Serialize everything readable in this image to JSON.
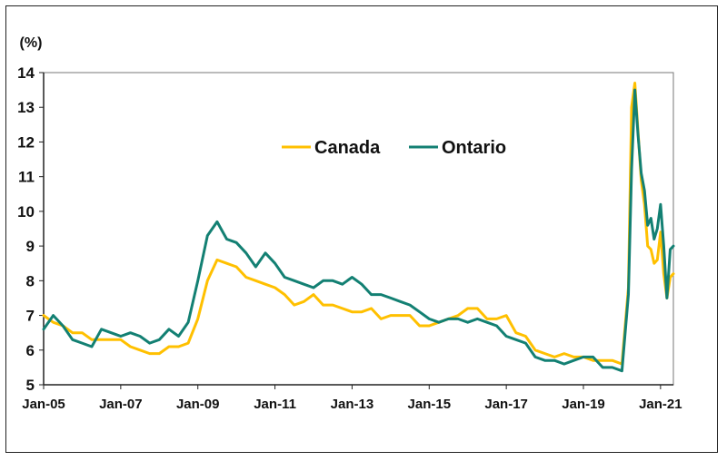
{
  "chart_data": {
    "type": "line",
    "ylabel": "(%)",
    "xlabel": "",
    "title": "",
    "ylim": [
      5,
      14
    ],
    "yticks": [
      5,
      6,
      7,
      8,
      9,
      10,
      11,
      12,
      13,
      14
    ],
    "xlim": [
      "2005-01",
      "2021-05"
    ],
    "xticks": [
      "Jan-05",
      "Jan-07",
      "Jan-09",
      "Jan-11",
      "Jan-13",
      "Jan-15",
      "Jan-17",
      "Jan-19",
      "Jan-21"
    ],
    "grid": false,
    "legend_position": "top-center",
    "series": [
      {
        "name": "Canada",
        "color": "#FFC000",
        "x": [
          "2005-01",
          "2005-04",
          "2005-07",
          "2005-10",
          "2006-01",
          "2006-04",
          "2006-07",
          "2006-10",
          "2007-01",
          "2007-04",
          "2007-07",
          "2007-10",
          "2008-01",
          "2008-04",
          "2008-07",
          "2008-10",
          "2009-01",
          "2009-04",
          "2009-07",
          "2009-10",
          "2010-01",
          "2010-04",
          "2010-07",
          "2010-10",
          "2011-01",
          "2011-04",
          "2011-07",
          "2011-10",
          "2012-01",
          "2012-04",
          "2012-07",
          "2012-10",
          "2013-01",
          "2013-04",
          "2013-07",
          "2013-10",
          "2014-01",
          "2014-04",
          "2014-07",
          "2014-10",
          "2015-01",
          "2015-04",
          "2015-07",
          "2015-10",
          "2016-01",
          "2016-04",
          "2016-07",
          "2016-10",
          "2017-01",
          "2017-04",
          "2017-07",
          "2017-10",
          "2018-01",
          "2018-04",
          "2018-07",
          "2018-10",
          "2019-01",
          "2019-04",
          "2019-07",
          "2019-10",
          "2020-01",
          "2020-03",
          "2020-04",
          "2020-05",
          "2020-06",
          "2020-07",
          "2020-08",
          "2020-09",
          "2020-10",
          "2020-11",
          "2020-12",
          "2021-01",
          "2021-02",
          "2021-03",
          "2021-04",
          "2021-05"
        ],
        "values": [
          7.0,
          6.8,
          6.7,
          6.5,
          6.5,
          6.3,
          6.3,
          6.3,
          6.3,
          6.1,
          6.0,
          5.9,
          5.9,
          6.1,
          6.1,
          6.2,
          6.9,
          8.0,
          8.6,
          8.5,
          8.4,
          8.1,
          8.0,
          7.9,
          7.8,
          7.6,
          7.3,
          7.4,
          7.6,
          7.3,
          7.3,
          7.2,
          7.1,
          7.1,
          7.2,
          6.9,
          7.0,
          7.0,
          7.0,
          6.7,
          6.7,
          6.8,
          6.9,
          7.0,
          7.2,
          7.2,
          6.9,
          6.9,
          7.0,
          6.5,
          6.4,
          6.0,
          5.9,
          5.8,
          5.9,
          5.8,
          5.8,
          5.7,
          5.7,
          5.7,
          5.6,
          7.8,
          13.0,
          13.7,
          12.3,
          10.9,
          10.2,
          9.0,
          8.9,
          8.5,
          8.6,
          9.4,
          8.2,
          7.5,
          8.1,
          8.2
        ]
      },
      {
        "name": "Ontario",
        "color": "#138073",
        "x": [
          "2005-01",
          "2005-04",
          "2005-07",
          "2005-10",
          "2006-01",
          "2006-04",
          "2006-07",
          "2006-10",
          "2007-01",
          "2007-04",
          "2007-07",
          "2007-10",
          "2008-01",
          "2008-04",
          "2008-07",
          "2008-10",
          "2009-01",
          "2009-04",
          "2009-07",
          "2009-10",
          "2010-01",
          "2010-04",
          "2010-07",
          "2010-10",
          "2011-01",
          "2011-04",
          "2011-07",
          "2011-10",
          "2012-01",
          "2012-04",
          "2012-07",
          "2012-10",
          "2013-01",
          "2013-04",
          "2013-07",
          "2013-10",
          "2014-01",
          "2014-04",
          "2014-07",
          "2014-10",
          "2015-01",
          "2015-04",
          "2015-07",
          "2015-10",
          "2016-01",
          "2016-04",
          "2016-07",
          "2016-10",
          "2017-01",
          "2017-04",
          "2017-07",
          "2017-10",
          "2018-01",
          "2018-04",
          "2018-07",
          "2018-10",
          "2019-01",
          "2019-04",
          "2019-07",
          "2019-10",
          "2020-01",
          "2020-03",
          "2020-04",
          "2020-05",
          "2020-06",
          "2020-07",
          "2020-08",
          "2020-09",
          "2020-10",
          "2020-11",
          "2020-12",
          "2021-01",
          "2021-02",
          "2021-03",
          "2021-04",
          "2021-05"
        ],
        "values": [
          6.6,
          7.0,
          6.7,
          6.3,
          6.2,
          6.1,
          6.6,
          6.5,
          6.4,
          6.5,
          6.4,
          6.2,
          6.3,
          6.6,
          6.4,
          6.8,
          8.0,
          9.3,
          9.7,
          9.2,
          9.1,
          8.8,
          8.4,
          8.8,
          8.5,
          8.1,
          8.0,
          7.9,
          7.8,
          8.0,
          8.0,
          7.9,
          8.1,
          7.9,
          7.6,
          7.6,
          7.5,
          7.4,
          7.3,
          7.1,
          6.9,
          6.8,
          6.9,
          6.9,
          6.8,
          6.9,
          6.8,
          6.7,
          6.4,
          6.3,
          6.2,
          5.8,
          5.7,
          5.7,
          5.6,
          5.7,
          5.8,
          5.8,
          5.5,
          5.5,
          5.4,
          7.6,
          11.2,
          13.5,
          12.2,
          11.1,
          10.6,
          9.6,
          9.8,
          9.2,
          9.5,
          10.2,
          9.0,
          7.5,
          8.9,
          9.0
        ]
      }
    ]
  }
}
